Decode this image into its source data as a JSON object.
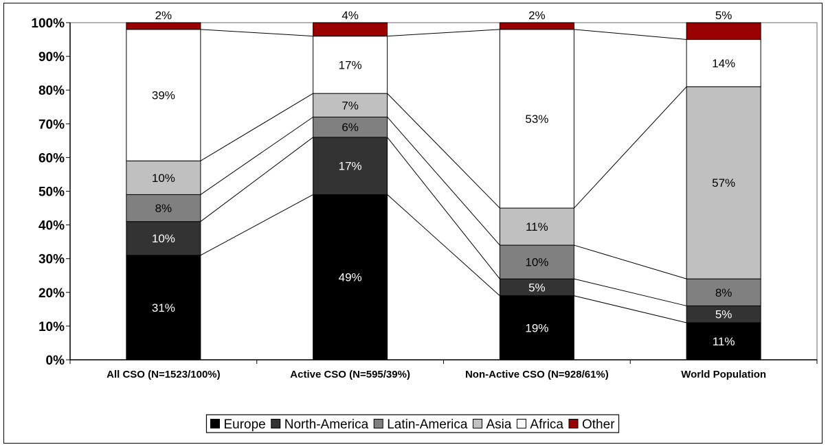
{
  "chart_data": {
    "type": "bar",
    "stacked": true,
    "percent": true,
    "categories": [
      "All CSO (N=1523/100%)",
      "Active CSO (N=595/39%)",
      "Non-Active CSO (N=928/61%)",
      "World Population"
    ],
    "series": [
      {
        "name": "Europe",
        "color": "#000000",
        "label_color": "#ffffff",
        "values": [
          31,
          49,
          19,
          11
        ]
      },
      {
        "name": "North-America",
        "color": "#333333",
        "label_color": "#ffffff",
        "values": [
          10,
          17,
          5,
          5
        ]
      },
      {
        "name": "Latin-America",
        "color": "#808080",
        "label_color": "#000000",
        "values": [
          8,
          6,
          10,
          8
        ]
      },
      {
        "name": "Asia",
        "color": "#c0c0c0",
        "label_color": "#000000",
        "values": [
          10,
          7,
          11,
          57
        ]
      },
      {
        "name": "Africa",
        "color": "#ffffff",
        "label_color": "#000000",
        "values": [
          39,
          17,
          53,
          14
        ]
      },
      {
        "name": "Other",
        "color": "#990000",
        "label_color": "#000000",
        "values": [
          2,
          4,
          2,
          5
        ]
      }
    ],
    "ylim": [
      0,
      100
    ],
    "yticks": [
      0,
      10,
      20,
      30,
      40,
      50,
      60,
      70,
      80,
      90,
      100
    ],
    "ytick_labels": [
      "0%",
      "10%",
      "20%",
      "30%",
      "40%",
      "50%",
      "60%",
      "70%",
      "80%",
      "90%",
      "100%"
    ],
    "label_suffix": "%",
    "series_lines": true,
    "grid": false,
    "legend_position": "bottom"
  }
}
